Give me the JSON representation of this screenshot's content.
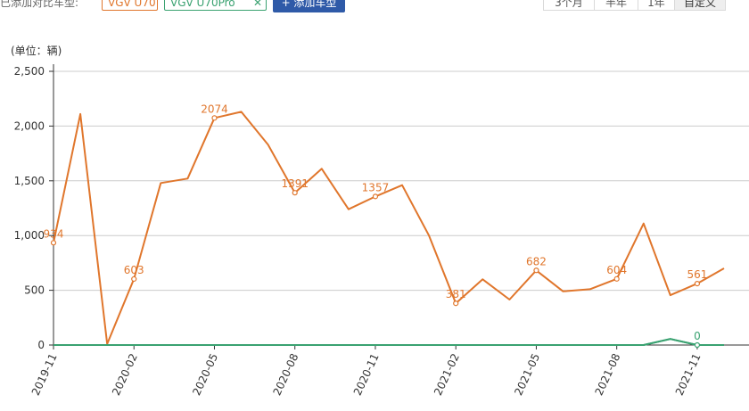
{
  "toolbar": {
    "added_label": "已添加对比车型:",
    "chips": [
      {
        "label": "VGV U70",
        "color": "#e0762c"
      },
      {
        "label": "VGV U70Pro",
        "color": "#3aa271"
      }
    ],
    "add_button": "+ 添加车型",
    "ranges": [
      {
        "label": "3个月",
        "active": false
      },
      {
        "label": "半年",
        "active": false
      },
      {
        "label": "1年",
        "active": false
      },
      {
        "label": "自定义",
        "active": true
      }
    ]
  },
  "chart_data": {
    "type": "line",
    "unit_label": "(单位：辆)",
    "ylim": [
      0,
      2500
    ],
    "yticks": [
      0,
      500,
      1000,
      1500,
      2000,
      2500
    ],
    "ytick_labels": [
      "0",
      "500",
      "1,000",
      "1,500",
      "2,000",
      "2,500"
    ],
    "xtick_labels": [
      "2019-11",
      "2020-02",
      "2020-05",
      "2020-08",
      "2020-11",
      "2021-02",
      "2021-05",
      "2021-08",
      "2021-11"
    ],
    "xtick_index": [
      0,
      3,
      6,
      9,
      12,
      15,
      18,
      21,
      24
    ],
    "x": [
      "2019-11",
      "2019-12",
      "2020-01",
      "2020-02",
      "2020-03",
      "2020-04",
      "2020-05",
      "2020-06",
      "2020-07",
      "2020-08",
      "2020-09",
      "2020-10",
      "2020-11",
      "2020-12",
      "2021-01",
      "2021-02",
      "2021-03",
      "2021-04",
      "2021-05",
      "2021-06",
      "2021-07",
      "2021-08",
      "2021-09",
      "2021-10",
      "2021-11",
      "2021-12"
    ],
    "grid": true,
    "series": [
      {
        "color": "#e0762c",
        "values": [
          934,
          2110,
          10,
          603,
          1480,
          1520,
          2074,
          2130,
          1830,
          1391,
          1610,
          1240,
          1357,
          1460,
          1000,
          381,
          600,
          415,
          682,
          490,
          510,
          604,
          1110,
          455,
          561,
          700
        ],
        "labels": {
          "0": "934",
          "3": "603",
          "6": "2074",
          "9": "1391",
          "12": "1357",
          "15": "381",
          "18": "682",
          "21": "604",
          "24": "561"
        }
      },
      {
        "color": "#3aa271",
        "values": [
          0,
          0,
          0,
          0,
          0,
          0,
          0,
          0,
          0,
          0,
          0,
          0,
          0,
          0,
          0,
          0,
          0,
          0,
          0,
          0,
          0,
          0,
          0,
          55,
          0,
          0
        ],
        "labels": {
          "24": "0"
        }
      }
    ]
  }
}
